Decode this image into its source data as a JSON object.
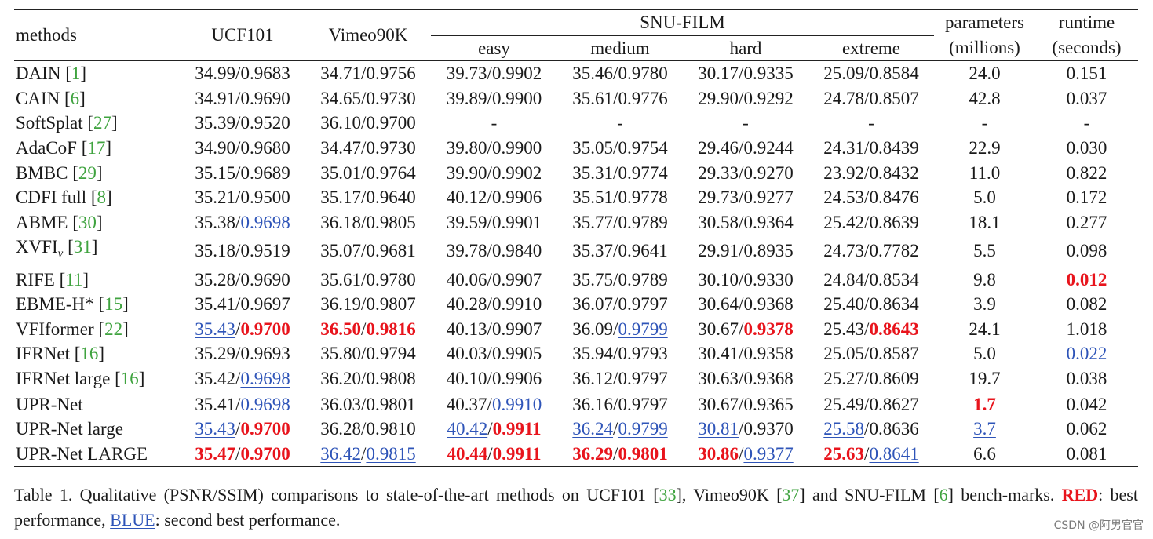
{
  "header": {
    "methods": "methods",
    "ucf": "UCF101",
    "vimeo": "Vimeo90K",
    "snu": "SNU-FILM",
    "easy": "easy",
    "medium": "medium",
    "hard": "hard",
    "extreme": "extreme",
    "params1": "parameters",
    "params2": "(millions)",
    "runtime1": "runtime",
    "runtime2": "(seconds)"
  },
  "rows": [
    {
      "method": "DAIN",
      "ref": "1",
      "ucf": [
        [
          "34.99",
          ""
        ],
        [
          "0.9683",
          ""
        ]
      ],
      "vimeo": [
        [
          "34.71",
          ""
        ],
        [
          "0.9756",
          ""
        ]
      ],
      "easy": [
        [
          "39.73",
          ""
        ],
        [
          "0.9902",
          ""
        ]
      ],
      "medium": [
        [
          "35.46",
          ""
        ],
        [
          "0.9780",
          ""
        ]
      ],
      "hard": [
        [
          "30.17",
          ""
        ],
        [
          "0.9335",
          ""
        ]
      ],
      "extreme": [
        [
          "25.09",
          ""
        ],
        [
          "0.8584",
          ""
        ]
      ],
      "params": [
        "24.0",
        ""
      ],
      "runtime": [
        "0.151",
        ""
      ]
    },
    {
      "method": "CAIN",
      "ref": "6",
      "ucf": [
        [
          "34.91",
          ""
        ],
        [
          "0.9690",
          ""
        ]
      ],
      "vimeo": [
        [
          "34.65",
          ""
        ],
        [
          "0.9730",
          ""
        ]
      ],
      "easy": [
        [
          "39.89",
          ""
        ],
        [
          "0.9900",
          ""
        ]
      ],
      "medium": [
        [
          "35.61",
          ""
        ],
        [
          "0.9776",
          ""
        ]
      ],
      "hard": [
        [
          "29.90",
          ""
        ],
        [
          "0.9292",
          ""
        ]
      ],
      "extreme": [
        [
          "24.78",
          ""
        ],
        [
          "0.8507",
          ""
        ]
      ],
      "params": [
        "42.8",
        ""
      ],
      "runtime": [
        "0.037",
        ""
      ]
    },
    {
      "method": "SoftSplat",
      "ref": "27",
      "ucf": [
        [
          "35.39",
          ""
        ],
        [
          "0.9520",
          ""
        ]
      ],
      "vimeo": [
        [
          "36.10",
          ""
        ],
        [
          "0.9700",
          ""
        ]
      ],
      "easy": "-",
      "medium": "-",
      "hard": "-",
      "extreme": "-",
      "params": [
        "-",
        ""
      ],
      "runtime": [
        "-",
        ""
      ]
    },
    {
      "method": "AdaCoF",
      "ref": "17",
      "ucf": [
        [
          "34.90",
          ""
        ],
        [
          "0.9680",
          ""
        ]
      ],
      "vimeo": [
        [
          "34.47",
          ""
        ],
        [
          "0.9730",
          ""
        ]
      ],
      "easy": [
        [
          "39.80",
          ""
        ],
        [
          "0.9900",
          ""
        ]
      ],
      "medium": [
        [
          "35.05",
          ""
        ],
        [
          "0.9754",
          ""
        ]
      ],
      "hard": [
        [
          "29.46",
          ""
        ],
        [
          "0.9244",
          ""
        ]
      ],
      "extreme": [
        [
          "24.31",
          ""
        ],
        [
          "0.8439",
          ""
        ]
      ],
      "params": [
        "22.9",
        ""
      ],
      "runtime": [
        "0.030",
        ""
      ]
    },
    {
      "method": "BMBC",
      "ref": "29",
      "ucf": [
        [
          "35.15",
          ""
        ],
        [
          "0.9689",
          ""
        ]
      ],
      "vimeo": [
        [
          "35.01",
          ""
        ],
        [
          "0.9764",
          ""
        ]
      ],
      "easy": [
        [
          "39.90",
          ""
        ],
        [
          "0.9902",
          ""
        ]
      ],
      "medium": [
        [
          "35.31",
          ""
        ],
        [
          "0.9774",
          ""
        ]
      ],
      "hard": [
        [
          "29.33",
          ""
        ],
        [
          "0.9270",
          ""
        ]
      ],
      "extreme": [
        [
          "23.92",
          ""
        ],
        [
          "0.8432",
          ""
        ]
      ],
      "params": [
        "11.0",
        ""
      ],
      "runtime": [
        "0.822",
        ""
      ]
    },
    {
      "method": "CDFI full",
      "ref": "8",
      "ucf": [
        [
          "35.21",
          ""
        ],
        [
          "0.9500",
          ""
        ]
      ],
      "vimeo": [
        [
          "35.17",
          ""
        ],
        [
          "0.9640",
          ""
        ]
      ],
      "easy": [
        [
          "40.12",
          ""
        ],
        [
          "0.9906",
          ""
        ]
      ],
      "medium": [
        [
          "35.51",
          ""
        ],
        [
          "0.9778",
          ""
        ]
      ],
      "hard": [
        [
          "29.73",
          ""
        ],
        [
          "0.9277",
          ""
        ]
      ],
      "extreme": [
        [
          "24.53",
          ""
        ],
        [
          "0.8476",
          ""
        ]
      ],
      "params": [
        "5.0",
        ""
      ],
      "runtime": [
        "0.172",
        ""
      ]
    },
    {
      "method": "ABME",
      "ref": "30",
      "ucf": [
        [
          "35.38",
          ""
        ],
        [
          "0.9698",
          "blue"
        ]
      ],
      "vimeo": [
        [
          "36.18",
          ""
        ],
        [
          "0.9805",
          ""
        ]
      ],
      "easy": [
        [
          "39.59",
          ""
        ],
        [
          "0.9901",
          ""
        ]
      ],
      "medium": [
        [
          "35.77",
          ""
        ],
        [
          "0.9789",
          ""
        ]
      ],
      "hard": [
        [
          "30.58",
          ""
        ],
        [
          "0.9364",
          ""
        ]
      ],
      "extreme": [
        [
          "25.42",
          ""
        ],
        [
          "0.8639",
          ""
        ]
      ],
      "params": [
        "18.1",
        ""
      ],
      "runtime": [
        "0.277",
        ""
      ]
    },
    {
      "method": "XVFI",
      "sub": "v",
      "ref": "31",
      "ucf": [
        [
          "35.18",
          ""
        ],
        [
          "0.9519",
          ""
        ]
      ],
      "vimeo": [
        [
          "35.07",
          ""
        ],
        [
          "0.9681",
          ""
        ]
      ],
      "easy": [
        [
          "39.78",
          ""
        ],
        [
          "0.9840",
          ""
        ]
      ],
      "medium": [
        [
          "35.37",
          ""
        ],
        [
          "0.9641",
          ""
        ]
      ],
      "hard": [
        [
          "29.91",
          ""
        ],
        [
          "0.8935",
          ""
        ]
      ],
      "extreme": [
        [
          "24.73",
          ""
        ],
        [
          "0.7782",
          ""
        ]
      ],
      "params": [
        "5.5",
        ""
      ],
      "runtime": [
        "0.098",
        ""
      ]
    },
    {
      "method": "RIFE",
      "ref": "11",
      "ucf": [
        [
          "35.28",
          ""
        ],
        [
          "0.9690",
          ""
        ]
      ],
      "vimeo": [
        [
          "35.61",
          ""
        ],
        [
          "0.9780",
          ""
        ]
      ],
      "easy": [
        [
          "40.06",
          ""
        ],
        [
          "0.9907",
          ""
        ]
      ],
      "medium": [
        [
          "35.75",
          ""
        ],
        [
          "0.9789",
          ""
        ]
      ],
      "hard": [
        [
          "30.10",
          ""
        ],
        [
          "0.9330",
          ""
        ]
      ],
      "extreme": [
        [
          "24.84",
          ""
        ],
        [
          "0.8534",
          ""
        ]
      ],
      "params": [
        "9.8",
        ""
      ],
      "runtime": [
        "0.012",
        "red"
      ]
    },
    {
      "method": "EBME-H*",
      "ref": "15",
      "ucf": [
        [
          "35.41",
          ""
        ],
        [
          "0.9697",
          ""
        ]
      ],
      "vimeo": [
        [
          "36.19",
          ""
        ],
        [
          "0.9807",
          ""
        ]
      ],
      "easy": [
        [
          "40.28",
          ""
        ],
        [
          "0.9910",
          ""
        ]
      ],
      "medium": [
        [
          "36.07",
          ""
        ],
        [
          "0.9797",
          ""
        ]
      ],
      "hard": [
        [
          "30.64",
          ""
        ],
        [
          "0.9368",
          ""
        ]
      ],
      "extreme": [
        [
          "25.40",
          ""
        ],
        [
          "0.8634",
          ""
        ]
      ],
      "params": [
        "3.9",
        ""
      ],
      "runtime": [
        "0.082",
        ""
      ]
    },
    {
      "method": "VFIformer ",
      "ref": "22",
      "ucf": [
        [
          "35.43",
          "blue"
        ],
        [
          "0.9700",
          "red"
        ]
      ],
      "vimeo": [
        [
          "36.50",
          "red"
        ],
        [
          "0.9816",
          "red"
        ]
      ],
      "easy": [
        [
          "40.13",
          ""
        ],
        [
          "0.9907",
          ""
        ]
      ],
      "medium": [
        [
          "36.09",
          ""
        ],
        [
          "0.9799",
          "blue"
        ]
      ],
      "hard": [
        [
          "30.67",
          ""
        ],
        [
          "0.9378",
          "red"
        ]
      ],
      "extreme": [
        [
          "25.43",
          ""
        ],
        [
          "0.8643",
          "red"
        ]
      ],
      "params": [
        "24.1",
        ""
      ],
      "runtime": [
        "1.018",
        ""
      ]
    },
    {
      "method": "IFRNet ",
      "ref": "16",
      "ucf": [
        [
          "35.29",
          ""
        ],
        [
          "0.9693",
          ""
        ]
      ],
      "vimeo": [
        [
          "35.80",
          ""
        ],
        [
          "0.9794",
          ""
        ]
      ],
      "easy": [
        [
          "40.03",
          ""
        ],
        [
          "0.9905",
          ""
        ]
      ],
      "medium": [
        [
          "35.94",
          ""
        ],
        [
          "0.9793",
          ""
        ]
      ],
      "hard": [
        [
          "30.41",
          ""
        ],
        [
          "0.9358",
          ""
        ]
      ],
      "extreme": [
        [
          "25.05",
          ""
        ],
        [
          "0.8587",
          ""
        ]
      ],
      "params": [
        "5.0",
        ""
      ],
      "runtime": [
        "0.022",
        "blue"
      ]
    },
    {
      "method": "IFRNet large ",
      "ref": "16",
      "ucf": [
        [
          "35.42",
          ""
        ],
        [
          "0.9698",
          "blue"
        ]
      ],
      "vimeo": [
        [
          "36.20",
          ""
        ],
        [
          "0.9808",
          ""
        ]
      ],
      "easy": [
        [
          "40.10",
          ""
        ],
        [
          "0.9906",
          ""
        ]
      ],
      "medium": [
        [
          "36.12",
          ""
        ],
        [
          "0.9797",
          ""
        ]
      ],
      "hard": [
        [
          "30.63",
          ""
        ],
        [
          "0.9368",
          ""
        ]
      ],
      "extreme": [
        [
          "25.27",
          ""
        ],
        [
          "0.8609",
          ""
        ]
      ],
      "params": [
        "19.7",
        ""
      ],
      "runtime": [
        "0.038",
        ""
      ]
    },
    {
      "method": "UPR-Net",
      "ref": "",
      "sep": true,
      "ucf": [
        [
          "35.41",
          ""
        ],
        [
          "0.9698",
          "blue"
        ]
      ],
      "vimeo": [
        [
          "36.03",
          ""
        ],
        [
          "0.9801",
          ""
        ]
      ],
      "easy": [
        [
          "40.37",
          ""
        ],
        [
          "0.9910",
          "blue"
        ]
      ],
      "medium": [
        [
          "36.16",
          ""
        ],
        [
          "0.9797",
          ""
        ]
      ],
      "hard": [
        [
          "30.67",
          ""
        ],
        [
          "0.9365",
          ""
        ]
      ],
      "extreme": [
        [
          "25.49",
          ""
        ],
        [
          "0.8627",
          ""
        ]
      ],
      "params": [
        "1.7",
        "red"
      ],
      "runtime": [
        "0.042",
        ""
      ]
    },
    {
      "method": "UPR-Net large",
      "ref": "",
      "ucf": [
        [
          "35.43",
          "blue"
        ],
        [
          "0.9700",
          "red"
        ]
      ],
      "vimeo": [
        [
          "36.28",
          ""
        ],
        [
          "0.9810",
          ""
        ]
      ],
      "easy": [
        [
          "40.42",
          "blue"
        ],
        [
          "0.9911",
          "red"
        ]
      ],
      "medium": [
        [
          "36.24",
          "blue"
        ],
        [
          "0.9799",
          "blue"
        ]
      ],
      "hard": [
        [
          "30.81",
          "blue"
        ],
        [
          "0.9370",
          ""
        ]
      ],
      "extreme": [
        [
          "25.58",
          "blue"
        ],
        [
          "0.8636",
          ""
        ]
      ],
      "params": [
        "3.7",
        "blue"
      ],
      "runtime": [
        "0.062",
        ""
      ]
    },
    {
      "method": "UPR-Net LARGE",
      "ref": "",
      "last": true,
      "ucf": [
        [
          "35.47",
          "red"
        ],
        [
          "0.9700",
          "red"
        ]
      ],
      "vimeo": [
        [
          "36.42",
          "blue"
        ],
        [
          "0.9815",
          "blue"
        ]
      ],
      "easy": [
        [
          "40.44",
          "red"
        ],
        [
          "0.9911",
          "red"
        ]
      ],
      "medium": [
        [
          "36.29",
          "red"
        ],
        [
          "0.9801",
          "red"
        ]
      ],
      "hard": [
        [
          "30.86",
          "red"
        ],
        [
          "0.9377",
          "blue"
        ]
      ],
      "extreme": [
        [
          "25.63",
          "red"
        ],
        [
          "0.8641",
          "blue"
        ]
      ],
      "params": [
        "6.6",
        ""
      ],
      "runtime": [
        "0.081",
        ""
      ]
    }
  ],
  "caption": {
    "p1": "Table 1. Qualitative (PSNR/SSIM) comparisons to state-of-the-art methods on UCF101 [",
    "r1": "33",
    "p2": "], Vimeo90K [",
    "r2": "37",
    "p3": "] and SNU-FILM [",
    "r3": "6",
    "p4": "] bench-marks. ",
    "red_label": "RED",
    "p5": ": best performance, ",
    "blue_label": "BLUE",
    "p6": ": second best performance."
  },
  "watermark": "CSDN @阿男官官",
  "colors": {
    "best": "#e8141c",
    "second": "#2e54b8",
    "ref": "#3fa33f"
  }
}
